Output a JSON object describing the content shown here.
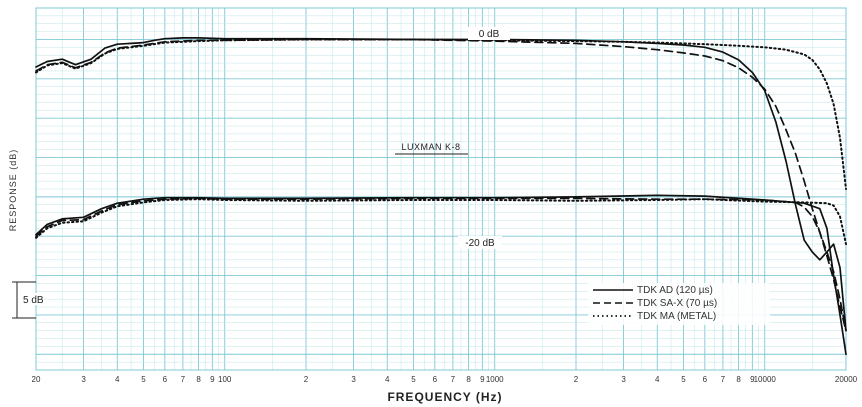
{
  "chart_data": {
    "type": "line",
    "x_scale": "log",
    "xlim": [
      20,
      20000
    ],
    "ylim": [
      -42,
      4
    ],
    "xlabel": "FREQUENCY (Hz)",
    "ylabel": "RESPONSE (dB)",
    "grid": true,
    "legend_position": "bottom-right",
    "x_tick_labels": [
      {
        "value": 20,
        "label": "20"
      },
      {
        "value": 30,
        "label": "3"
      },
      {
        "value": 40,
        "label": "4"
      },
      {
        "value": 50,
        "label": "5"
      },
      {
        "value": 60,
        "label": "6"
      },
      {
        "value": 70,
        "label": "7"
      },
      {
        "value": 80,
        "label": "8"
      },
      {
        "value": 90,
        "label": "9"
      },
      {
        "value": 100,
        "label": "100"
      },
      {
        "value": 200,
        "label": "2"
      },
      {
        "value": 300,
        "label": "3"
      },
      {
        "value": 400,
        "label": "4"
      },
      {
        "value": 500,
        "label": "5"
      },
      {
        "value": 600,
        "label": "6"
      },
      {
        "value": 700,
        "label": "7"
      },
      {
        "value": 800,
        "label": "8"
      },
      {
        "value": 900,
        "label": "9"
      },
      {
        "value": 1000,
        "label": "1000"
      },
      {
        "value": 2000,
        "label": "2"
      },
      {
        "value": 3000,
        "label": "3"
      },
      {
        "value": 4000,
        "label": "4"
      },
      {
        "value": 5000,
        "label": "5"
      },
      {
        "value": 6000,
        "label": "6"
      },
      {
        "value": 7000,
        "label": "7"
      },
      {
        "value": 8000,
        "label": "8"
      },
      {
        "value": 9000,
        "label": "9"
      },
      {
        "value": 10000,
        "label": "10000"
      },
      {
        "value": 20000,
        "label": "20000"
      }
    ],
    "annotations": {
      "top_level": "0 dB",
      "bottom_level": "-20 dB",
      "deck": "LUXMAN K-8",
      "scale": "5 dB"
    },
    "series": [
      {
        "name": "TDK AD (120 µs)",
        "style": "solid",
        "curves": [
          {
            "x": [
              20,
              22,
              25,
              28,
              32,
              36,
              40,
              45,
              50,
              55,
              60,
              70,
              80,
              100,
              200,
              500,
              1000,
              2000,
              3000,
              4000,
              5000,
              6000,
              7000,
              8000,
              9000,
              10000,
              11000,
              12000,
              13000,
              14000,
              15000,
              16000,
              17000,
              18000,
              19000,
              20000
            ],
            "y": [
              -3.5,
              -2.8,
              -2.5,
              -3.2,
              -2.5,
              -1.1,
              -0.6,
              -0.5,
              -0.4,
              -0.1,
              0.1,
              0.2,
              0.2,
              0.1,
              0.1,
              0.0,
              0.0,
              -0.1,
              -0.3,
              -0.5,
              -0.7,
              -1.0,
              -1.6,
              -2.6,
              -4.2,
              -6.5,
              -10.5,
              -15.5,
              -21.0,
              -25.5,
              -27.0,
              -28.0,
              -27.0,
              -26.0,
              -29.0,
              -37.0
            ]
          },
          {
            "x": [
              20,
              22,
              25,
              30,
              35,
              40,
              50,
              60,
              80,
              100,
              200,
              500,
              1000,
              2000,
              4000,
              6000,
              10000,
              14000,
              16000,
              17000,
              18000,
              19000,
              20000
            ],
            "y": [
              -24.8,
              -23.5,
              -22.8,
              -22.6,
              -21.5,
              -20.8,
              -20.3,
              -20.1,
              -20.1,
              -20.2,
              -20.2,
              -20.1,
              -20.1,
              -20.0,
              -19.8,
              -19.9,
              -20.4,
              -20.8,
              -21.5,
              -24.0,
              -30.0,
              -35.0,
              -40.0
            ]
          }
        ]
      },
      {
        "name": "TDK SA-X (70 µs)",
        "style": "dashed",
        "curves": [
          {
            "x": [
              20,
              22,
              25,
              28,
              32,
              36,
              40,
              45,
              50,
              60,
              80,
              100,
              200,
              500,
              1000,
              2000,
              3000,
              4000,
              5000,
              6000,
              7000,
              8000,
              9000,
              10000,
              11000,
              12000,
              13000,
              14000,
              15000,
              16000,
              17000,
              18000,
              19000,
              20000
            ],
            "y": [
              -4.0,
              -3.2,
              -2.9,
              -3.6,
              -2.9,
              -1.7,
              -1.1,
              -0.9,
              -0.7,
              -0.3,
              -0.1,
              -0.1,
              0.0,
              0.0,
              -0.2,
              -0.5,
              -0.9,
              -1.3,
              -1.7,
              -2.1,
              -2.7,
              -3.6,
              -4.8,
              -6.3,
              -8.5,
              -11.5,
              -14.5,
              -18.0,
              -21.5,
              -24.5,
              -27.0,
              -29.5,
              -33.0,
              -37.0
            ]
          },
          {
            "x": [
              20,
              22,
              25,
              30,
              35,
              40,
              50,
              60,
              80,
              100,
              200,
              500,
              1000,
              2000,
              4000,
              6000,
              10000,
              13000,
              14000,
              15000,
              16000,
              17000,
              18000,
              19000,
              20000
            ],
            "y": [
              -25.0,
              -23.8,
              -23.0,
              -22.9,
              -21.8,
              -21.0,
              -20.5,
              -20.3,
              -20.2,
              -20.3,
              -20.3,
              -20.2,
              -20.2,
              -20.2,
              -20.3,
              -20.3,
              -20.4,
              -20.7,
              -21.3,
              -22.5,
              -24.5,
              -27.5,
              -30.5,
              -34.0,
              -37.0
            ]
          }
        ]
      },
      {
        "name": "TDK MA (METAL)",
        "style": "dotted",
        "curves": [
          {
            "x": [
              20,
              22,
              25,
              28,
              32,
              36,
              40,
              45,
              50,
              60,
              80,
              100,
              200,
              500,
              1000,
              2000,
              3000,
              4000,
              5000,
              6000,
              7000,
              8000,
              9000,
              10000,
              12000,
              14000,
              15000,
              16000,
              17000,
              18000,
              19000,
              20000
            ],
            "y": [
              -4.2,
              -3.3,
              -3.0,
              -3.7,
              -3.0,
              -1.8,
              -1.2,
              -1.0,
              -0.8,
              -0.4,
              -0.2,
              -0.1,
              0.0,
              0.0,
              -0.1,
              -0.2,
              -0.3,
              -0.4,
              -0.5,
              -0.6,
              -0.7,
              -0.8,
              -0.9,
              -1.0,
              -1.3,
              -1.9,
              -2.6,
              -3.8,
              -5.6,
              -8.2,
              -12.5,
              -19.0
            ]
          },
          {
            "x": [
              20,
              22,
              25,
              30,
              35,
              40,
              50,
              60,
              80,
              100,
              200,
              500,
              1000,
              2000,
              4000,
              6000,
              10000,
              14000,
              17000,
              18000,
              19000,
              20000
            ],
            "y": [
              -25.2,
              -24.0,
              -23.3,
              -23.1,
              -22.0,
              -21.2,
              -20.7,
              -20.4,
              -20.3,
              -20.4,
              -20.5,
              -20.4,
              -20.4,
              -20.5,
              -20.4,
              -20.3,
              -20.6,
              -20.7,
              -20.8,
              -21.1,
              -22.5,
              -26.0
            ]
          }
        ]
      }
    ]
  },
  "colors": {
    "grid_minor": "#bfe4ea",
    "grid_major": "#7fc8d4",
    "curve": "#111111",
    "background": "#ffffff"
  }
}
